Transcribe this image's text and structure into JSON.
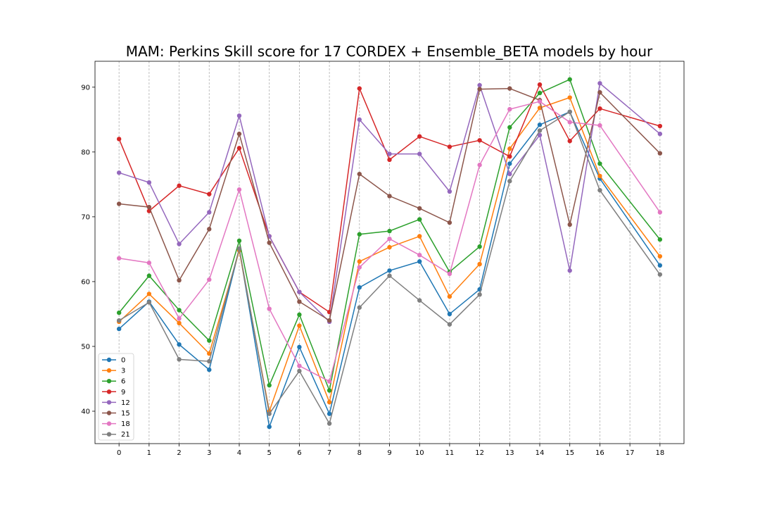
{
  "chart_data": {
    "type": "line",
    "title": "MAM: Perkins Skill score for 17 CORDEX + Ensemble_BETA models by hour",
    "xlabel": "",
    "ylabel": "",
    "x": [
      0,
      1,
      2,
      3,
      4,
      5,
      6,
      7,
      8,
      9,
      10,
      11,
      12,
      13,
      14,
      15,
      16,
      18
    ],
    "xticks": [
      0,
      1,
      2,
      3,
      4,
      5,
      6,
      7,
      8,
      9,
      10,
      11,
      12,
      13,
      14,
      15,
      16,
      17,
      18
    ],
    "xlim": [
      -0.8,
      18.8
    ],
    "ylim": [
      35,
      94
    ],
    "yticks": [
      40,
      50,
      60,
      70,
      80,
      90
    ],
    "grid": "vertical-dashed",
    "legend_position": "lower-left",
    "series": [
      {
        "name": "0",
        "color": "#1f77b4",
        "values": [
          52.7,
          56.9,
          50.3,
          46.4,
          65.0,
          37.6,
          49.9,
          39.6,
          59.1,
          61.7,
          63.1,
          55.0,
          58.8,
          78.2,
          84.2,
          86.2,
          75.9,
          62.5
        ]
      },
      {
        "name": "3",
        "color": "#ff7f0e",
        "values": [
          53.8,
          58.1,
          53.6,
          48.9,
          64.8,
          40.0,
          53.2,
          41.4,
          63.1,
          65.3,
          67.0,
          57.7,
          62.7,
          80.5,
          86.8,
          88.4,
          76.3,
          63.9
        ]
      },
      {
        "name": "6",
        "color": "#2ca02c",
        "values": [
          55.2,
          60.9,
          55.6,
          50.9,
          66.3,
          44.0,
          54.9,
          43.2,
          67.3,
          67.8,
          69.6,
          61.5,
          65.4,
          83.8,
          89.1,
          91.2,
          78.2,
          66.5
        ]
      },
      {
        "name": "9",
        "color": "#d62728",
        "values": [
          82.0,
          70.9,
          74.8,
          73.5,
          80.6,
          67.0,
          58.4,
          55.3,
          89.8,
          78.8,
          82.4,
          80.8,
          81.8,
          79.3,
          90.4,
          81.7,
          86.7,
          84.0
        ]
      },
      {
        "name": "12",
        "color": "#9467bd",
        "values": [
          76.8,
          75.3,
          65.8,
          70.7,
          85.6,
          67.0,
          58.4,
          53.8,
          85.0,
          79.7,
          79.7,
          73.9,
          90.3,
          76.6,
          82.6,
          61.7,
          90.6,
          82.8
        ]
      },
      {
        "name": "15",
        "color": "#8c564b",
        "values": [
          72.0,
          71.5,
          60.2,
          68.1,
          82.8,
          66.0,
          56.9,
          54.0,
          76.6,
          73.2,
          71.3,
          69.1,
          89.7,
          89.8,
          88.0,
          68.8,
          89.2,
          79.8
        ]
      },
      {
        "name": "18",
        "color": "#e377c2",
        "values": [
          63.6,
          62.9,
          54.3,
          60.3,
          74.2,
          55.8,
          47.0,
          44.6,
          62.2,
          66.6,
          64.1,
          61.2,
          78.0,
          86.6,
          87.8,
          84.6,
          84.1,
          70.7
        ]
      },
      {
        "name": "21",
        "color": "#7f7f7f",
        "values": [
          54.0,
          56.8,
          48.0,
          47.7,
          65.1,
          39.6,
          46.2,
          38.1,
          56.0,
          60.9,
          57.1,
          53.4,
          58.0,
          75.5,
          83.3,
          86.2,
          74.1,
          61.1
        ]
      }
    ]
  }
}
